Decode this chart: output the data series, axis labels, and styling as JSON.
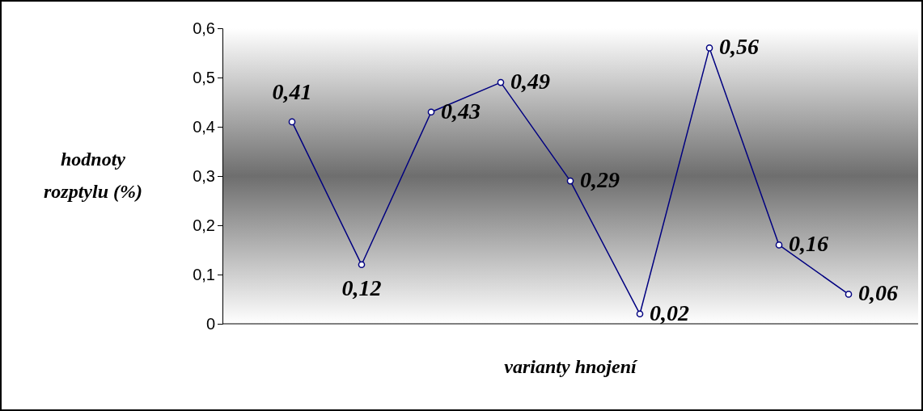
{
  "chart_data": {
    "type": "line",
    "xlabel": "varianty hnojení",
    "ylabel": "hodnoty rozptylu (%)",
    "categories": [
      null,
      null,
      null,
      null,
      null,
      null,
      null,
      null,
      null
    ],
    "series": [
      {
        "color": "#000080",
        "values": [
          0.41,
          0.12,
          0.43,
          0.49,
          0.29,
          0.02,
          0.56,
          0.16,
          0.06
        ]
      }
    ],
    "ylim": [
      0,
      0.6
    ],
    "yticks": [
      0,
      {
        "value": 0.1,
        "label": "0,1"
      },
      {
        "value": 0.2,
        "label": "0,2"
      },
      {
        "value": 0.3,
        "label": "0,3"
      },
      {
        "value": 0.4,
        "label": "0,4"
      },
      {
        "value": 0.5,
        "label": "0,5"
      },
      {
        "value": 0.6,
        "label": "0,6"
      }
    ],
    "value_labels": [
      "0,41",
      "0,12",
      "0,43",
      "0,49",
      "0,29",
      "0,02",
      "0,56",
      "0,16",
      "0,06"
    ],
    "marker": "circle",
    "line_style": "solid",
    "grid": false
  }
}
